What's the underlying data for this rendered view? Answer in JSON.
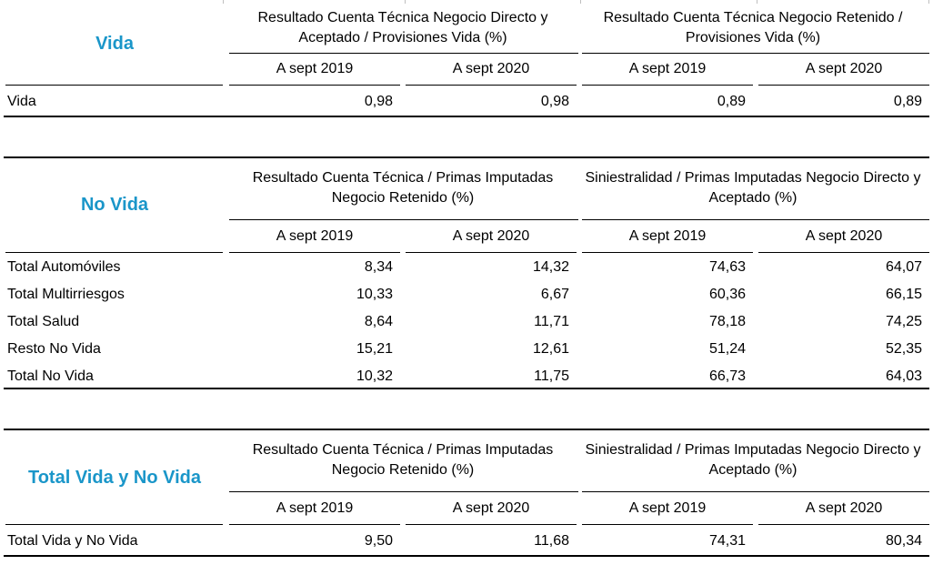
{
  "vida": {
    "title": "Vida",
    "header_left": "Resultado Cuenta Técnica Negocio Directo y Aceptado / Provisiones Vida (%)",
    "header_right": "Resultado Cuenta Técnica Negocio Retenido / Provisiones Vida (%)",
    "cols": [
      "A sept 2019",
      "A sept 2020",
      "A sept 2019",
      "A sept 2020"
    ],
    "rows": [
      {
        "label": "Vida",
        "values": [
          "0,98",
          "0,98",
          "0,89",
          "0,89"
        ]
      }
    ]
  },
  "no_vida": {
    "title": "No Vida",
    "header_left": "Resultado Cuenta Técnica / Primas Imputadas Negocio Retenido (%)",
    "header_right": "Siniestralidad / Primas Imputadas Negocio Directo y Aceptado (%)",
    "cols": [
      "A sept 2019",
      "A sept 2020",
      "A sept 2019",
      "A sept 2020"
    ],
    "rows": [
      {
        "label": "Total Automóviles",
        "values": [
          "8,34",
          "14,32",
          "74,63",
          "64,07"
        ]
      },
      {
        "label": "Total Multirriesgos",
        "values": [
          "10,33",
          "6,67",
          "60,36",
          "66,15"
        ]
      },
      {
        "label": "Total Salud",
        "values": [
          "8,64",
          "11,71",
          "78,18",
          "74,25"
        ]
      },
      {
        "label": "Resto No Vida",
        "values": [
          "15,21",
          "12,61",
          "51,24",
          "52,35"
        ]
      },
      {
        "label": "Total No Vida",
        "values": [
          "10,32",
          "11,75",
          "66,73",
          "64,03"
        ]
      }
    ]
  },
  "total": {
    "title": "Total Vida y No Vida",
    "header_left": "Resultado Cuenta Técnica / Primas Imputadas Negocio Retenido (%)",
    "header_right": "Siniestralidad / Primas Imputadas Negocio Directo y Aceptado (%)",
    "cols": [
      "A sept 2019",
      "A sept 2020",
      "A sept 2019",
      "A sept 2020"
    ],
    "rows": [
      {
        "label": "Total Vida y No Vida",
        "values": [
          "9,50",
          "11,68",
          "74,31",
          "80,34"
        ]
      }
    ]
  }
}
